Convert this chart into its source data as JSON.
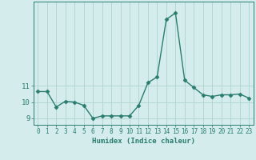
{
  "x": [
    0,
    1,
    2,
    3,
    4,
    5,
    6,
    7,
    8,
    9,
    10,
    11,
    12,
    13,
    14,
    15,
    16,
    17,
    18,
    19,
    20,
    21,
    22,
    23
  ],
  "y": [
    10.65,
    10.65,
    9.7,
    10.05,
    10.0,
    9.8,
    9.0,
    9.15,
    9.15,
    9.15,
    9.15,
    9.8,
    11.2,
    11.55,
    15.1,
    15.5,
    11.35,
    10.9,
    10.45,
    10.35,
    10.45,
    10.45,
    10.5,
    10.25
  ],
  "xlabel": "Humidex (Indice chaleur)",
  "line_color": "#2a7d6e",
  "marker": "D",
  "marker_size": 2.5,
  "bg_color": "#d4eceb",
  "grid_color": "#afd4d0",
  "tick_color": "#2a7d6e",
  "axis_color": "#2a7d6e",
  "label_color": "#2a7d6e",
  "ylim": [
    8.6,
    16.2
  ],
  "xlim": [
    -0.5,
    23.5
  ],
  "yticks": [
    9,
    10,
    11
  ],
  "xticks": [
    0,
    1,
    2,
    3,
    4,
    5,
    6,
    7,
    8,
    9,
    10,
    11,
    12,
    13,
    14,
    15,
    16,
    17,
    18,
    19,
    20,
    21,
    22,
    23
  ]
}
